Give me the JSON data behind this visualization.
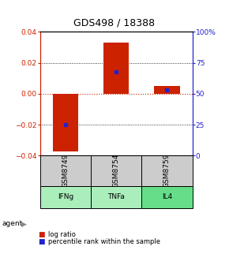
{
  "title": "GDS498 / 18388",
  "samples": [
    "GSM8749",
    "GSM8754",
    "GSM8759"
  ],
  "agents": [
    "IFNg",
    "TNFa",
    "IL4"
  ],
  "log_ratios": [
    -0.037,
    0.033,
    0.005
  ],
  "percentile_ranks": [
    0.25,
    0.68,
    0.53
  ],
  "ylim": [
    -0.04,
    0.04
  ],
  "yticks_left": [
    -0.04,
    -0.02,
    0,
    0.02,
    0.04
  ],
  "yticks_right": [
    0,
    25,
    50,
    75,
    100
  ],
  "bar_color": "#cc2200",
  "marker_color": "#2222cc",
  "zero_line_color": "#cc2200",
  "bg_color": "#ffffff",
  "sample_cell_color": "#cccccc",
  "agent_cell_color": "#aaeebb",
  "agent_cell_color_il4": "#66dd88",
  "title_fontsize": 9,
  "label_fontsize": 6.5,
  "tick_fontsize": 6.5,
  "legend_fontsize": 6,
  "bar_width": 0.5
}
